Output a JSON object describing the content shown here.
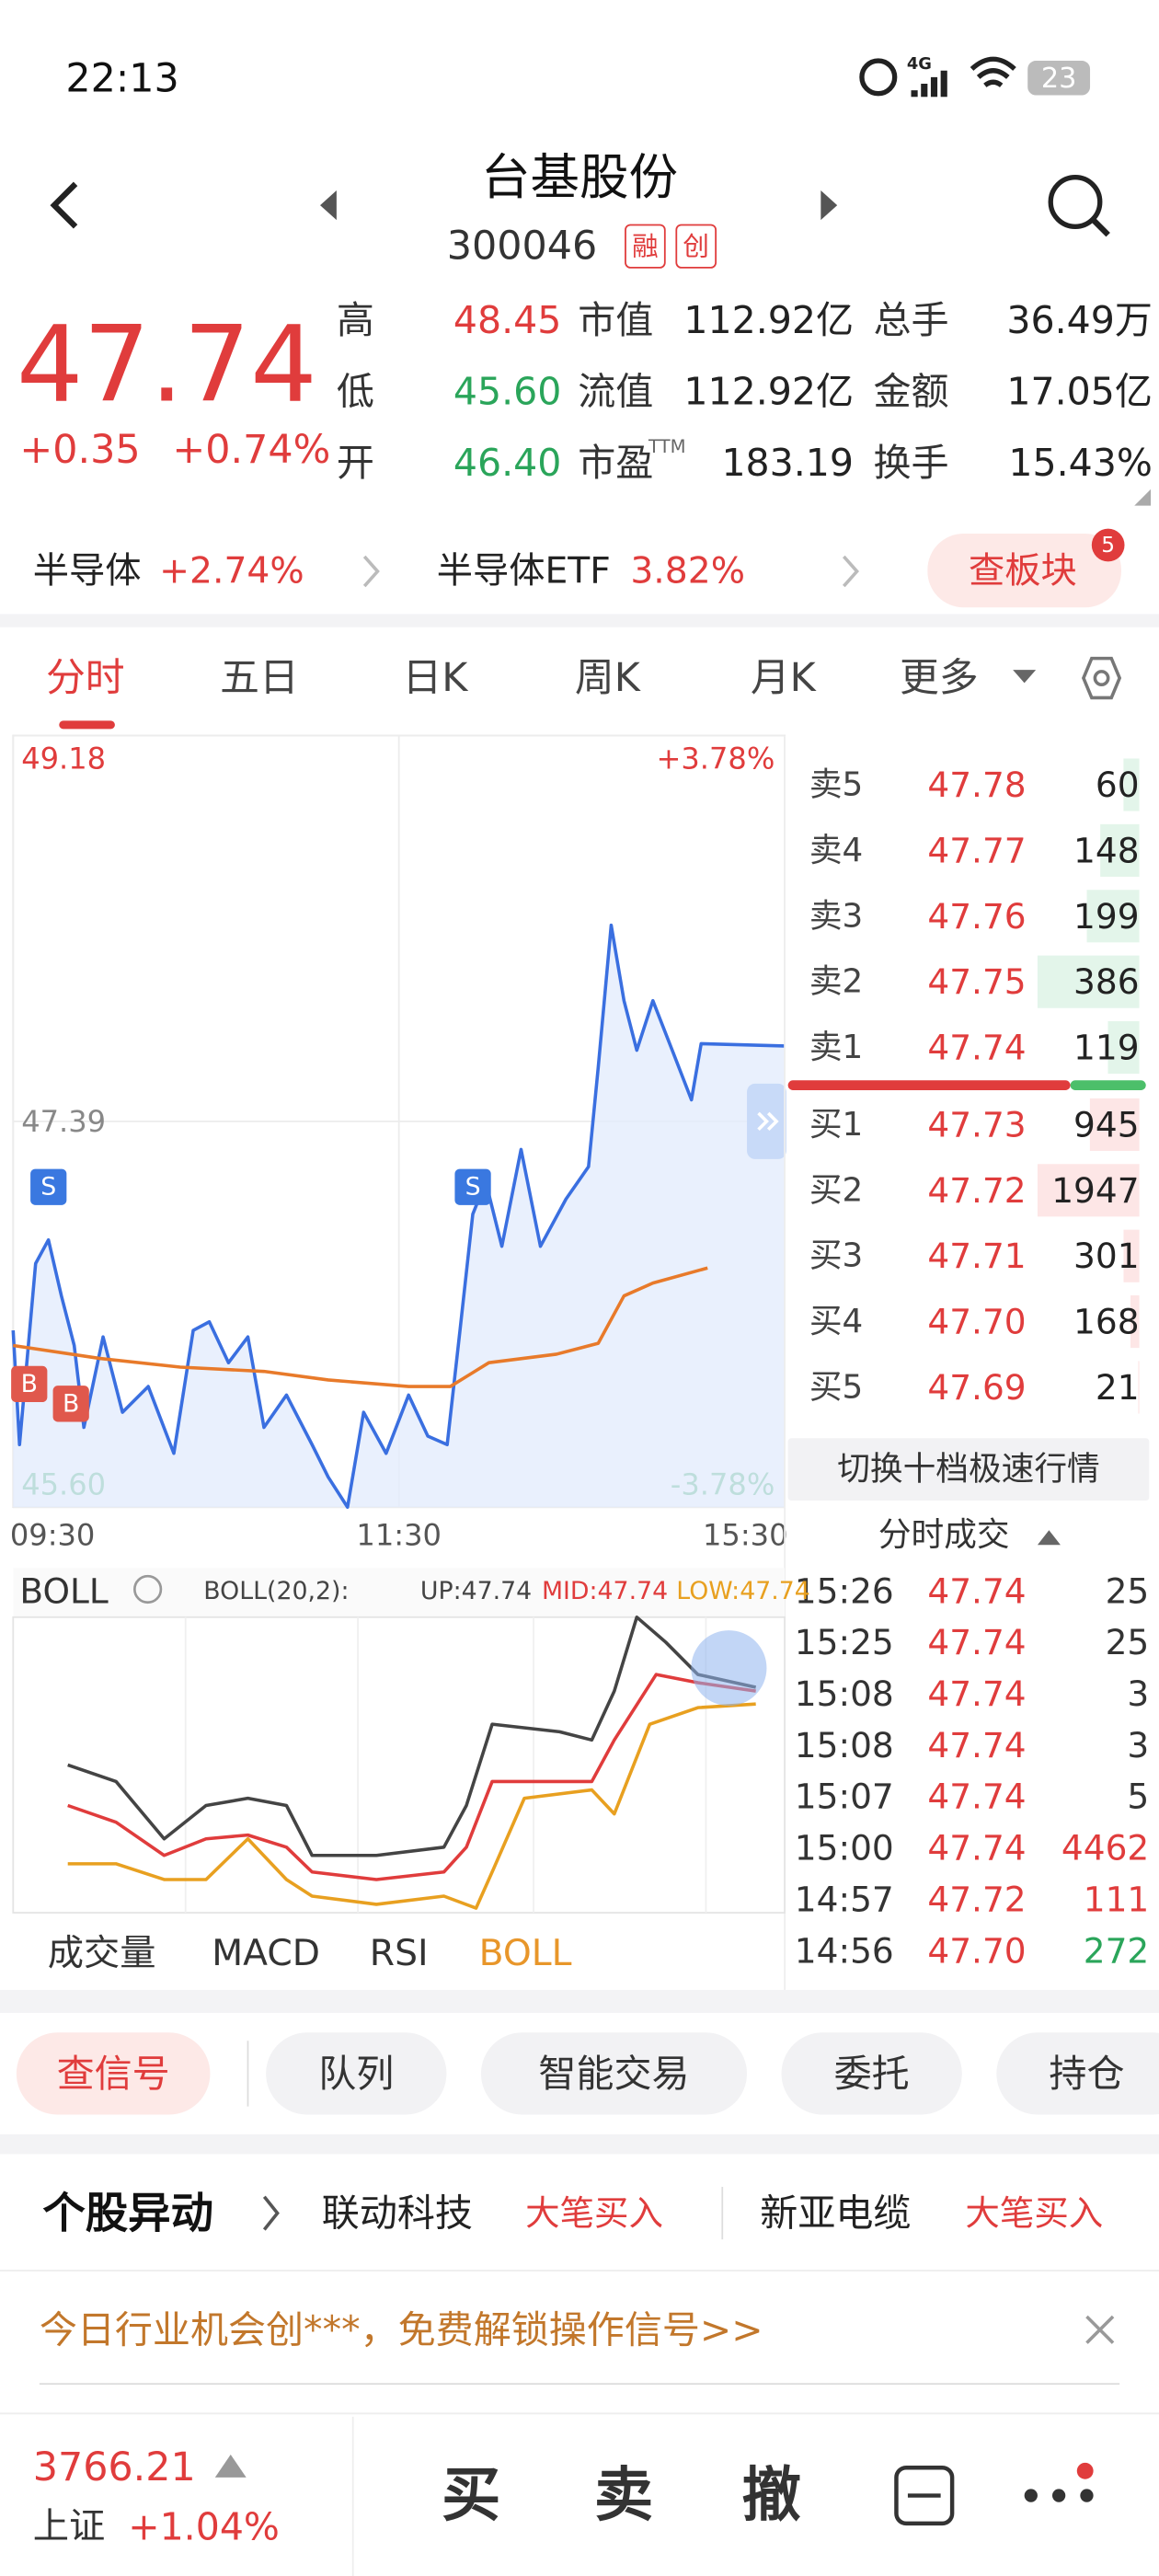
{
  "status": {
    "time": "22:13",
    "network": "4G",
    "battery": "23"
  },
  "header": {
    "name": "台基股份",
    "code": "300046",
    "tags": [
      "融",
      "创"
    ]
  },
  "quote": {
    "price": "47.74",
    "change": "+0.35",
    "percent": "+0.74%"
  },
  "stats": [
    [
      "高",
      "48.45",
      "市值",
      "112.92亿",
      "总手",
      "36.49万"
    ],
    [
      "低",
      "45.60",
      "流值",
      "112.92亿",
      "金额",
      "17.05亿"
    ],
    [
      "开",
      "46.40",
      "市盈",
      "183.19",
      "换手",
      "15.43%"
    ]
  ],
  "stats_sup": "TTM",
  "sectors": [
    {
      "name": "半导体",
      "change": "+2.74%"
    },
    {
      "name": "半导体ETF",
      "change": "3.82%"
    }
  ],
  "sector_button": "查板块",
  "sector_badge": "5",
  "tabs": [
    "分时",
    "五日",
    "日K",
    "周K",
    "月K",
    "更多"
  ],
  "chart_data": [
    {
      "type": "line",
      "xlim": [
        0,
        240
      ],
      "xticks": [
        {
          "value": 0,
          "label": "09:30"
        },
        {
          "value": 120,
          "label": "11:30"
        },
        {
          "value": 240,
          "label": "15:30"
        }
      ],
      "ylim": [
        45.6,
        49.18
      ],
      "yticks": [
        {
          "value": 45.6,
          "label": "45.60"
        },
        47.39,
        49.18
      ],
      "y2lim": [
        -3.78,
        3.78
      ],
      "y2ticks": [
        {
          "value": -3.78,
          "label": "-3.78%"
        },
        {
          "value": 3.78,
          "label": "+3.78%"
        }
      ],
      "grid": true,
      "series": [
        {
          "color": "#3a6fe0",
          "x": [
            0,
            2,
            7,
            11,
            15,
            19,
            22,
            28,
            34,
            42,
            50,
            56,
            61,
            67,
            73,
            78,
            85,
            93,
            98,
            104,
            109,
            116,
            123,
            129,
            135,
            139,
            143,
            147,
            152,
            158,
            164,
            172,
            179,
            182,
            186,
            190,
            194,
            199,
            205,
            211,
            214,
            240
          ],
          "values": [
            46.42,
            45.89,
            46.73,
            46.84,
            46.58,
            46.35,
            45.97,
            46.39,
            46.04,
            46.16,
            45.85,
            46.42,
            46.46,
            46.27,
            46.39,
            45.97,
            46.12,
            45.89,
            45.74,
            45.6,
            46.04,
            45.85,
            46.12,
            45.93,
            45.89,
            46.42,
            46.96,
            47.11,
            46.81,
            47.26,
            46.81,
            47.03,
            47.18,
            47.64,
            48.3,
            47.95,
            47.72,
            47.95,
            47.72,
            47.49,
            47.75,
            47.74
          ]
        },
        {
          "color": "#e87a2a",
          "x": [
            0,
            27,
            52,
            78,
            98,
            123,
            136,
            148,
            169,
            182,
            190,
            199,
            216
          ],
          "values": [
            46.35,
            46.29,
            46.25,
            46.23,
            46.19,
            46.16,
            46.16,
            46.27,
            46.31,
            46.36,
            46.58,
            46.64,
            46.71
          ]
        }
      ],
      "signals": [
        {
          "label": "S",
          "x": 11
        },
        {
          "label": "B",
          "x": 5
        },
        {
          "label": "B",
          "x": 18
        },
        {
          "label": "S",
          "x": 143
        }
      ]
    },
    {
      "type": "line",
      "title": "BOLL",
      "subtitle": "BOLL(20,2):",
      "xlim": [
        0,
        240
      ],
      "ylim": [
        45.3,
        48.5
      ],
      "series": [
        {
          "name": "UP:47.74",
          "color": "#444444",
          "x": [
            17,
            32,
            47,
            60,
            73,
            85,
            93,
            113,
            134,
            141,
            149,
            170,
            180,
            187,
            194,
            203,
            213,
            231
          ],
          "values": [
            46.9,
            46.72,
            46.1,
            46.46,
            46.54,
            46.46,
            45.92,
            45.92,
            46.01,
            46.46,
            47.34,
            47.26,
            47.17,
            47.7,
            48.5,
            48.23,
            47.88,
            47.74
          ]
        },
        {
          "name": "MID:47.74",
          "color": "#e03c3c",
          "x": [
            17,
            32,
            47,
            60,
            73,
            85,
            93,
            113,
            134,
            141,
            149,
            170,
            180,
            187,
            200,
            213,
            231
          ],
          "values": [
            46.46,
            46.28,
            45.92,
            46.1,
            46.14,
            46.01,
            45.74,
            45.66,
            45.74,
            46.01,
            46.72,
            46.72,
            46.72,
            47.17,
            47.88,
            47.79,
            47.7
          ]
        },
        {
          "name": "LOW:47.74",
          "color": "#e8a020",
          "x": [
            17,
            32,
            47,
            60,
            73,
            85,
            93,
            113,
            134,
            144,
            149,
            159,
            180,
            187,
            198,
            213,
            231
          ],
          "values": [
            45.83,
            45.83,
            45.66,
            45.66,
            46.1,
            45.66,
            45.48,
            45.39,
            45.48,
            45.35,
            45.74,
            46.54,
            46.63,
            46.37,
            47.34,
            47.52,
            47.56
          ]
        }
      ]
    }
  ],
  "order_book": {
    "sell": [
      {
        "label": "卖5",
        "price": "47.78",
        "volume": 60
      },
      {
        "label": "卖4",
        "price": "47.77",
        "volume": 148
      },
      {
        "label": "卖3",
        "price": "47.76",
        "volume": 199
      },
      {
        "label": "卖2",
        "price": "47.75",
        "volume": 386
      },
      {
        "label": "卖1",
        "price": "47.74",
        "volume": 119
      }
    ],
    "buy": [
      {
        "label": "买1",
        "price": "47.73",
        "volume": 945
      },
      {
        "label": "买2",
        "price": "47.72",
        "volume": 1947
      },
      {
        "label": "买3",
        "price": "47.71",
        "volume": 301
      },
      {
        "label": "买4",
        "price": "47.70",
        "volume": 168
      },
      {
        "label": "买5",
        "price": "47.69",
        "volume": 21
      }
    ],
    "switch_button": "切换十档极速行情"
  },
  "trades": {
    "title": "分时成交",
    "rows": [
      {
        "time": "15:26",
        "price": "47.74",
        "volume": "25",
        "color": "#333333"
      },
      {
        "time": "15:25",
        "price": "47.74",
        "volume": "25",
        "color": "#333333"
      },
      {
        "time": "15:08",
        "price": "47.74",
        "volume": "3",
        "color": "#333333"
      },
      {
        "time": "15:08",
        "price": "47.74",
        "volume": "3",
        "color": "#333333"
      },
      {
        "time": "15:07",
        "price": "47.74",
        "volume": "5",
        "color": "#333333"
      },
      {
        "time": "15:00",
        "price": "47.74",
        "volume": "4462",
        "color": "#e03c3c"
      },
      {
        "time": "14:57",
        "price": "47.72",
        "volume": "111",
        "color": "#e03c3c"
      },
      {
        "time": "14:56",
        "price": "47.70",
        "volume": "272",
        "color": "#2aa55a"
      }
    ]
  },
  "indicator_tabs": [
    "成交量",
    "MACD",
    "RSI",
    "BOLL"
  ],
  "actions": [
    "查信号",
    "队列",
    "智能交易",
    "委托",
    "持仓"
  ],
  "news": {
    "title": "个股异动",
    "items": [
      {
        "name": "联动科技",
        "event": "大笔买入"
      },
      {
        "name": "新亚电缆",
        "event": "大笔买入"
      }
    ]
  },
  "banner": "今日行业机会创***，免费解锁操作信号>>",
  "bottom": {
    "index_value": "3766.21",
    "index_name": "上证",
    "index_change": "+1.04%",
    "buttons": [
      "买",
      "卖",
      "撤"
    ]
  }
}
